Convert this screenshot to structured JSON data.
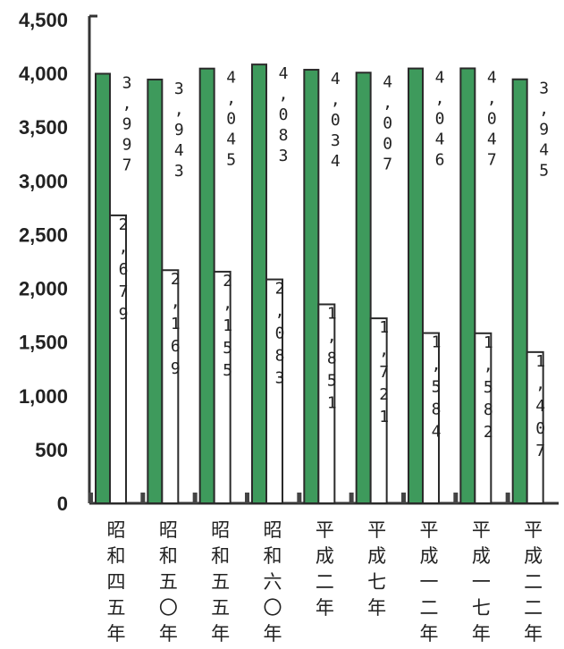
{
  "chart_data": {
    "type": "bar",
    "categories": [
      "昭和四五年",
      "昭和五〇年",
      "昭和五五年",
      "昭和六〇年",
      "平成二年",
      "平成七年",
      "平成一二年",
      "平成一七年",
      "平成二二年"
    ],
    "series": [
      {
        "values": [
          3997,
          3943,
          4045,
          4083,
          4034,
          4007,
          4046,
          4047,
          3945
        ],
        "labels": [
          "3,997",
          "3,943",
          "4,045",
          "4,083",
          "4,034",
          "4,007",
          "4,046",
          "4,047",
          "3,945"
        ],
        "color": "#3e9a5c"
      },
      {
        "values": [
          2679,
          2169,
          2155,
          2083,
          1851,
          1721,
          1584,
          1582,
          1407
        ],
        "labels": [
          "2,679",
          "2,169",
          "2,155",
          "2,083",
          "1,851",
          "1,721",
          "1,584",
          "1,582",
          "1,407"
        ],
        "color": "#ffffff"
      }
    ],
    "yticks": [
      "0",
      "500",
      "1,000",
      "1,500",
      "2,000",
      "2,500",
      "3,000",
      "3,500",
      "4,000",
      "4,500"
    ],
    "ylim": [
      0,
      4500
    ],
    "grid": false,
    "title": "",
    "xlabel": "",
    "ylabel": ""
  }
}
